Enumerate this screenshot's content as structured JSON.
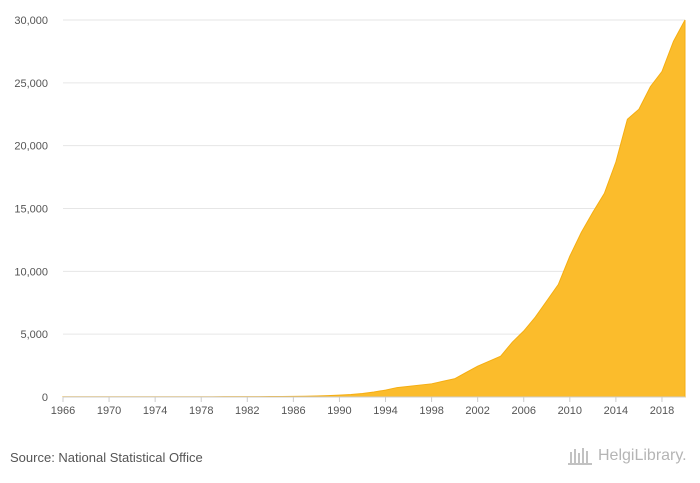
{
  "source_text": "Source: National Statistical Office",
  "brand": {
    "name": "HelgiLibrary."
  },
  "colors": {
    "area": "#FBBC2C",
    "area_stroke": "#F5AE12",
    "grid": "#e6e6e6",
    "text": "#555555"
  },
  "chart_data": {
    "type": "area",
    "title": "",
    "xlabel": "",
    "ylabel": "",
    "xlim": [
      1966,
      2020
    ],
    "ylim": [
      0,
      30000
    ],
    "y_ticks": [
      0,
      5000,
      10000,
      15000,
      20000,
      25000,
      30000
    ],
    "y_tick_labels": [
      "0",
      "5,000",
      "10,000",
      "15,000",
      "20,000",
      "25,000",
      "30,000"
    ],
    "x_ticks": [
      1966,
      1970,
      1974,
      1978,
      1982,
      1986,
      1990,
      1994,
      1998,
      2002,
      2006,
      2010,
      2014,
      2018
    ],
    "x_tick_labels": [
      "1966",
      "1970",
      "1974",
      "1978",
      "1982",
      "1986",
      "1990",
      "1994",
      "1998",
      "2002",
      "2006",
      "2010",
      "2014",
      "2018"
    ],
    "grid": true,
    "legend": "none",
    "x": [
      1966,
      1967,
      1968,
      1969,
      1970,
      1971,
      1972,
      1973,
      1974,
      1975,
      1976,
      1977,
      1978,
      1979,
      1980,
      1981,
      1982,
      1983,
      1984,
      1985,
      1986,
      1987,
      1988,
      1989,
      1990,
      1991,
      1992,
      1993,
      1994,
      1995,
      1996,
      1997,
      1998,
      1999,
      2000,
      2001,
      2002,
      2003,
      2004,
      2005,
      2006,
      2007,
      2008,
      2009,
      2010,
      2011,
      2012,
      2013,
      2014,
      2015,
      2016,
      2017,
      2018,
      2019,
      2020
    ],
    "values": [
      15,
      15,
      16,
      16,
      17,
      17,
      18,
      18,
      19,
      20,
      21,
      22,
      23,
      24,
      26,
      28,
      30,
      32,
      35,
      40,
      50,
      60,
      80,
      110,
      150,
      200,
      280,
      400,
      550,
      750,
      850,
      950,
      1050,
      1250,
      1450,
      1950,
      2450,
      2850,
      3250,
      4350,
      5250,
      6350,
      7650,
      8950,
      11200,
      13100,
      14700,
      16200,
      18700,
      22100,
      22900,
      24700,
      25900,
      28300,
      30000
    ]
  }
}
